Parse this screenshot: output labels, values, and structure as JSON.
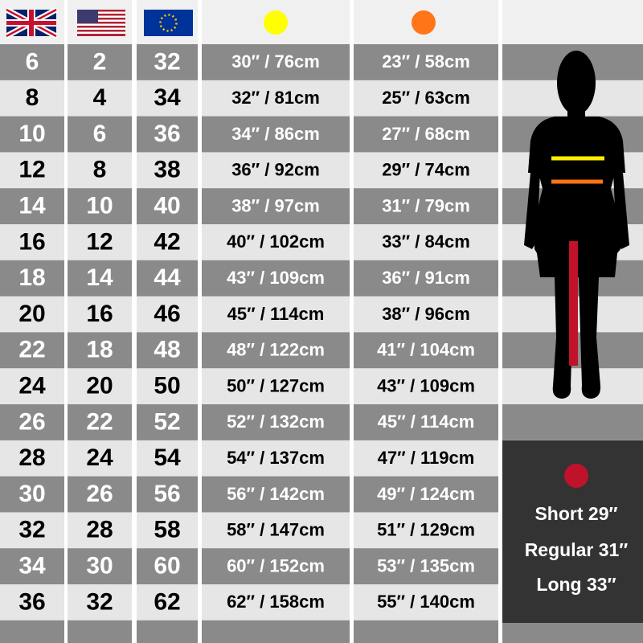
{
  "table": {
    "rows": [
      [
        "6",
        "2",
        "32",
        "30″ / 76cm",
        "23″ / 58cm"
      ],
      [
        "8",
        "4",
        "34",
        "32″ / 81cm",
        "25″ / 63cm"
      ],
      [
        "10",
        "6",
        "36",
        "34″ / 86cm",
        "27″ / 68cm"
      ],
      [
        "12",
        "8",
        "38",
        "36″ / 92cm",
        "29″ / 74cm"
      ],
      [
        "14",
        "10",
        "40",
        "38″ / 97cm",
        "31″ / 79cm"
      ],
      [
        "16",
        "12",
        "42",
        "40″ / 102cm",
        "33″ / 84cm"
      ],
      [
        "18",
        "14",
        "44",
        "43″ / 109cm",
        "36″ / 91cm"
      ],
      [
        "20",
        "16",
        "46",
        "45″ / 114cm",
        "38″ / 96cm"
      ],
      [
        "22",
        "18",
        "48",
        "48″ / 122cm",
        "41″ / 104cm"
      ],
      [
        "24",
        "20",
        "50",
        "50″ / 127cm",
        "43″ / 109cm"
      ],
      [
        "26",
        "22",
        "52",
        "52″ / 132cm",
        "45″ / 114cm"
      ],
      [
        "28",
        "24",
        "54",
        "54″ / 137cm",
        "47″ / 119cm"
      ],
      [
        "30",
        "26",
        "56",
        "56″ / 142cm",
        "49″ / 124cm"
      ],
      [
        "32",
        "28",
        "58",
        "58″ / 147cm",
        "51″ / 129cm"
      ],
      [
        "34",
        "30",
        "60",
        "60″ / 152cm",
        "53″ / 135cm"
      ],
      [
        "36",
        "32",
        "62",
        "62″ / 158cm",
        "55″ / 140cm"
      ]
    ]
  },
  "leg_lengths": [
    "Short 29″",
    "Regular 31″",
    "Long 33″"
  ]
}
